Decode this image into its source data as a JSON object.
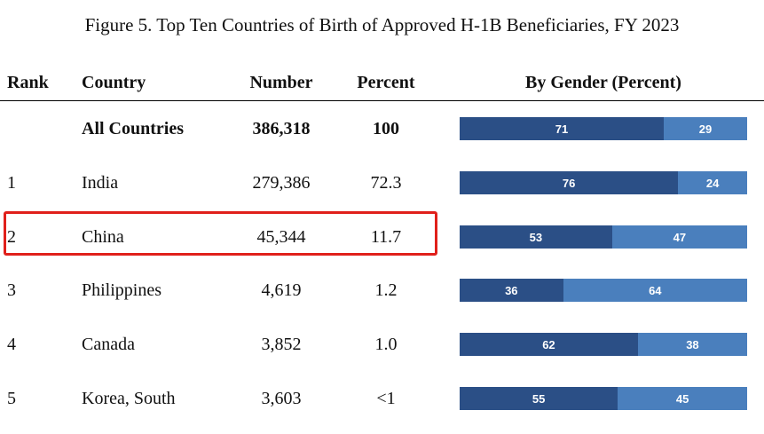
{
  "title": "Figure 5. Top Ten Countries of Birth of Approved H-1B Beneficiaries, FY 2023",
  "headers": {
    "rank": "Rank",
    "country": "Country",
    "number": "Number",
    "percent": "Percent",
    "gender": "By Gender (Percent)"
  },
  "colors": {
    "male": "#2b4f86",
    "female": "#4a7fbd",
    "highlight": "#e0201b"
  },
  "chart_data": {
    "type": "table",
    "title": "Figure 5. Top Ten Countries of Birth of Approved H-1B Beneficiaries, FY 2023",
    "columns": [
      "Rank",
      "Country",
      "Number",
      "Percent",
      "By Gender (Percent)"
    ],
    "rows": [
      {
        "rank": "",
        "country": "All Countries",
        "number": "386,318",
        "percent": "100",
        "gender": [
          71,
          29
        ],
        "bold": true
      },
      {
        "rank": "1",
        "country": "India",
        "number": "279,386",
        "percent": "72.3",
        "gender": [
          76,
          24
        ]
      },
      {
        "rank": "2",
        "country": "China",
        "number": "45,344",
        "percent": "11.7",
        "gender": [
          53,
          47
        ],
        "highlighted": true
      },
      {
        "rank": "3",
        "country": "Philippines",
        "number": "4,619",
        "percent": "1.2",
        "gender": [
          36,
          64
        ]
      },
      {
        "rank": "4",
        "country": "Canada",
        "number": "3,852",
        "percent": "1.0",
        "gender": [
          62,
          38
        ]
      },
      {
        "rank": "5",
        "country": "Korea, South",
        "number": "3,603",
        "percent": "<1",
        "gender": [
          55,
          45
        ]
      }
    ]
  }
}
